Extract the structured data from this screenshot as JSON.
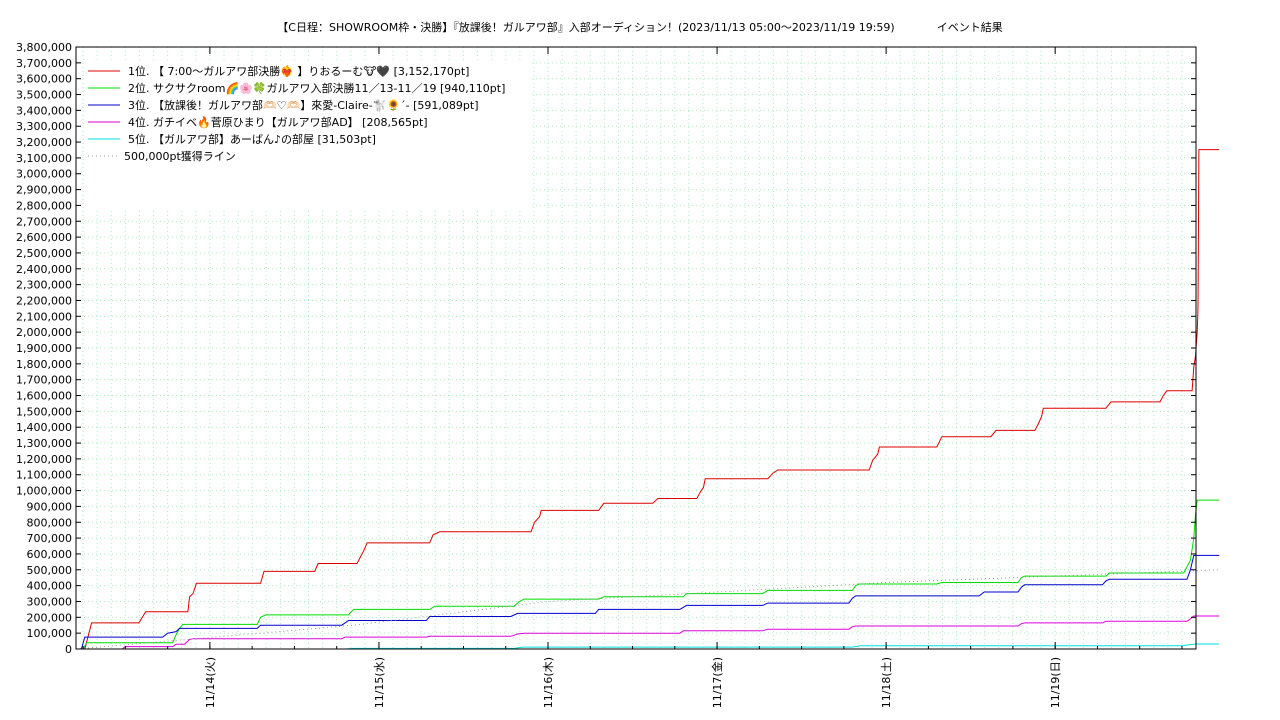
{
  "chart_data": {
    "type": "line",
    "title": "【C日程：SHOWROOM枠・決勝】『放課後！ガルアワ部』入部オーディション！(2023/11/13 05:00〜2023/11/19 19:59)",
    "title_suffix": "イベント結果",
    "xlabel": "",
    "ylabel": "",
    "x_unit": "days since 2023/11/13 00:00",
    "xlim": [
      0.208,
      6.833
    ],
    "ylim": [
      0,
      3800000
    ],
    "y_ticks": [
      0,
      100000,
      200000,
      300000,
      400000,
      500000,
      600000,
      700000,
      800000,
      900000,
      1000000,
      1100000,
      1200000,
      1300000,
      1400000,
      1500000,
      1600000,
      1700000,
      1800000,
      1900000,
      2000000,
      2100000,
      2200000,
      2300000,
      2400000,
      2500000,
      2600000,
      2700000,
      2800000,
      2900000,
      3000000,
      3100000,
      3200000,
      3300000,
      3400000,
      3500000,
      3600000,
      3700000,
      3800000
    ],
    "x_ticks": [
      {
        "x": 1,
        "label": "11/14(火)"
      },
      {
        "x": 2,
        "label": "11/15(水)"
      },
      {
        "x": 3,
        "label": "11/16(木)"
      },
      {
        "x": 4,
        "label": "11/17(金)"
      },
      {
        "x": 5,
        "label": "11/18(土)"
      },
      {
        "x": 6,
        "label": "11/19(日)"
      }
    ],
    "grid": true,
    "legend_position": "top-left",
    "series": [
      {
        "name": "1位. 【 7:00〜ガルアワ部決勝❤️‍🔥 】りおるーむ🐮🖤 [3,152,170pt]",
        "color": "#dd0000",
        "style": "solid",
        "points": [
          [
            0.208,
            0
          ],
          [
            0.26,
            0
          ],
          [
            0.3,
            165000
          ],
          [
            0.58,
            165000
          ],
          [
            0.62,
            235000
          ],
          [
            0.87,
            235000
          ],
          [
            0.88,
            330000
          ],
          [
            0.9,
            350000
          ],
          [
            0.92,
            415000
          ],
          [
            1.3,
            415000
          ],
          [
            1.32,
            490000
          ],
          [
            1.62,
            490000
          ],
          [
            1.64,
            540000
          ],
          [
            1.87,
            540000
          ],
          [
            1.91,
            620000
          ],
          [
            1.93,
            670000
          ],
          [
            2.3,
            670000
          ],
          [
            2.32,
            720000
          ],
          [
            2.36,
            740000
          ],
          [
            2.9,
            740000
          ],
          [
            2.92,
            800000
          ],
          [
            2.95,
            835000
          ],
          [
            2.96,
            875000
          ],
          [
            3.3,
            875000
          ],
          [
            3.33,
            920000
          ],
          [
            3.62,
            920000
          ],
          [
            3.65,
            950000
          ],
          [
            3.88,
            950000
          ],
          [
            3.9,
            990000
          ],
          [
            3.92,
            1020000
          ],
          [
            3.93,
            1075000
          ],
          [
            4.3,
            1075000
          ],
          [
            4.33,
            1110000
          ],
          [
            4.36,
            1130000
          ],
          [
            4.9,
            1130000
          ],
          [
            4.92,
            1190000
          ],
          [
            4.95,
            1230000
          ],
          [
            4.96,
            1275000
          ],
          [
            5.3,
            1275000
          ],
          [
            5.33,
            1340000
          ],
          [
            5.62,
            1340000
          ],
          [
            5.65,
            1380000
          ],
          [
            5.88,
            1380000
          ],
          [
            5.9,
            1420000
          ],
          [
            5.92,
            1470000
          ],
          [
            5.93,
            1520000
          ],
          [
            6.3,
            1520000
          ],
          [
            6.33,
            1560000
          ],
          [
            6.62,
            1560000
          ],
          [
            6.64,
            1600000
          ],
          [
            6.66,
            1630000
          ],
          [
            6.81,
            1630000
          ],
          [
            6.82,
            1780000
          ],
          [
            6.83,
            1850000
          ],
          [
            6.84,
            2000000
          ],
          [
            6.845,
            2150000
          ],
          [
            6.85,
            3152170
          ],
          [
            6.97,
            3152170
          ]
        ]
      },
      {
        "name": "2位. サクサクroom🌈🌸🍀ガルアワ入部決勝11／13-11／19 [940,110pt]",
        "color": "#00dd00",
        "style": "solid",
        "points": [
          [
            0.208,
            0
          ],
          [
            0.25,
            0
          ],
          [
            0.27,
            40000
          ],
          [
            0.78,
            40000
          ],
          [
            0.8,
            90000
          ],
          [
            0.82,
            130000
          ],
          [
            0.84,
            155000
          ],
          [
            1.28,
            155000
          ],
          [
            1.3,
            200000
          ],
          [
            1.33,
            215000
          ],
          [
            1.82,
            215000
          ],
          [
            1.85,
            250000
          ],
          [
            2.3,
            250000
          ],
          [
            2.33,
            270000
          ],
          [
            2.8,
            270000
          ],
          [
            2.83,
            300000
          ],
          [
            2.86,
            315000
          ],
          [
            3.3,
            315000
          ],
          [
            3.33,
            330000
          ],
          [
            3.8,
            330000
          ],
          [
            3.82,
            350000
          ],
          [
            4.27,
            350000
          ],
          [
            4.3,
            370000
          ],
          [
            4.8,
            370000
          ],
          [
            4.82,
            400000
          ],
          [
            4.84,
            410000
          ],
          [
            5.3,
            410000
          ],
          [
            5.33,
            420000
          ],
          [
            5.78,
            420000
          ],
          [
            5.8,
            450000
          ],
          [
            5.82,
            460000
          ],
          [
            6.3,
            460000
          ],
          [
            6.32,
            480000
          ],
          [
            6.76,
            480000
          ],
          [
            6.8,
            560000
          ],
          [
            6.82,
            700000
          ],
          [
            6.83,
            850000
          ],
          [
            6.84,
            940110
          ],
          [
            6.97,
            940110
          ]
        ]
      },
      {
        "name": "3位. 【放課後！ガルアワ部🫶🏻♡🫶🏻】來愛-Claire-🐩🌻ˊ- [591,089pt]",
        "color": "#0000cc",
        "style": "solid",
        "points": [
          [
            0.208,
            0
          ],
          [
            0.24,
            0
          ],
          [
            0.26,
            75000
          ],
          [
            0.72,
            75000
          ],
          [
            0.75,
            100000
          ],
          [
            0.8,
            110000
          ],
          [
            0.82,
            130000
          ],
          [
            1.28,
            130000
          ],
          [
            1.3,
            150000
          ],
          [
            1.78,
            150000
          ],
          [
            1.82,
            180000
          ],
          [
            2.28,
            180000
          ],
          [
            2.3,
            205000
          ],
          [
            2.78,
            205000
          ],
          [
            2.82,
            225000
          ],
          [
            3.28,
            225000
          ],
          [
            3.3,
            250000
          ],
          [
            3.78,
            250000
          ],
          [
            3.82,
            275000
          ],
          [
            4.27,
            275000
          ],
          [
            4.3,
            290000
          ],
          [
            4.78,
            290000
          ],
          [
            4.8,
            320000
          ],
          [
            4.82,
            335000
          ],
          [
            5.55,
            335000
          ],
          [
            5.58,
            360000
          ],
          [
            5.78,
            360000
          ],
          [
            5.8,
            390000
          ],
          [
            5.82,
            405000
          ],
          [
            6.28,
            405000
          ],
          [
            6.3,
            430000
          ],
          [
            6.32,
            440000
          ],
          [
            6.78,
            440000
          ],
          [
            6.8,
            500000
          ],
          [
            6.82,
            591089
          ],
          [
            6.97,
            591089
          ]
        ]
      },
      {
        "name": "4位. ガチイベ🔥菅原ひまり【ガルアワ部AD】 [208,565pt]",
        "color": "#dd00dd",
        "style": "solid",
        "points": [
          [
            0.208,
            0
          ],
          [
            0.48,
            0
          ],
          [
            0.5,
            15000
          ],
          [
            0.78,
            15000
          ],
          [
            0.8,
            30000
          ],
          [
            0.85,
            30000
          ],
          [
            0.88,
            60000
          ],
          [
            0.9,
            65000
          ],
          [
            1.78,
            65000
          ],
          [
            1.8,
            75000
          ],
          [
            2.28,
            75000
          ],
          [
            2.3,
            80000
          ],
          [
            2.78,
            80000
          ],
          [
            2.82,
            95000
          ],
          [
            2.86,
            100000
          ],
          [
            3.78,
            100000
          ],
          [
            3.8,
            115000
          ],
          [
            4.27,
            115000
          ],
          [
            4.3,
            125000
          ],
          [
            4.78,
            125000
          ],
          [
            4.8,
            140000
          ],
          [
            4.82,
            145000
          ],
          [
            5.78,
            145000
          ],
          [
            5.8,
            160000
          ],
          [
            5.82,
            165000
          ],
          [
            6.28,
            165000
          ],
          [
            6.3,
            175000
          ],
          [
            6.78,
            175000
          ],
          [
            6.8,
            190000
          ],
          [
            6.82,
            208565
          ],
          [
            6.97,
            208565
          ]
        ]
      },
      {
        "name": "5位. 【ガルアワ部】あーばん♪の部屋 [31,503pt]",
        "color": "#00dddd",
        "style": "solid",
        "points": [
          [
            0.208,
            0
          ],
          [
            1.8,
            0
          ],
          [
            1.85,
            4000
          ],
          [
            2.8,
            4000
          ],
          [
            2.85,
            12000
          ],
          [
            4.8,
            12000
          ],
          [
            4.85,
            20000
          ],
          [
            6.75,
            20000
          ],
          [
            6.8,
            28000
          ],
          [
            6.83,
            31503
          ],
          [
            6.97,
            31503
          ]
        ]
      },
      {
        "name": "500,000pt獲得ライン",
        "color": "#999999",
        "style": "dotted",
        "points": [
          [
            0.208,
            0
          ],
          [
            1.85,
            150000
          ],
          [
            3.0,
            300000
          ],
          [
            5.0,
            420000
          ],
          [
            6.97,
            500000
          ]
        ]
      }
    ]
  }
}
